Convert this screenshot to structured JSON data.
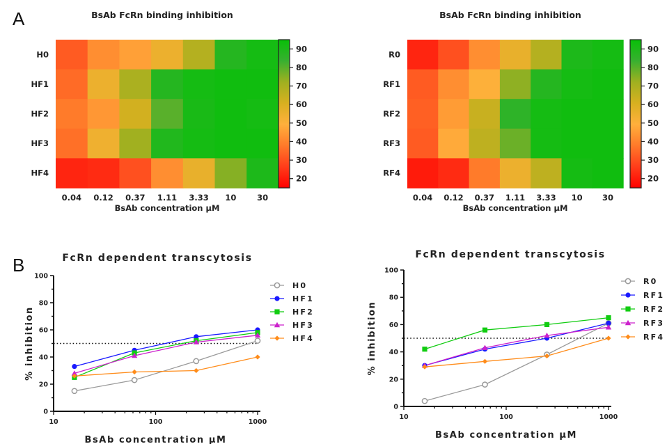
{
  "panel_labels": [
    "A",
    "B"
  ],
  "chart_data": [
    {
      "type": "heatmap",
      "title": "BsAb FcRn binding inhibition",
      "xlabel": "BsAb concentration µM",
      "x_categories": [
        "0.04",
        "0.12",
        "0.37",
        "1.11",
        "3.33",
        "10",
        "30"
      ],
      "y_categories": [
        "H0",
        "HF1",
        "HF2",
        "HF3",
        "HF4"
      ],
      "values": [
        [
          32,
          42,
          46,
          55,
          68,
          88,
          92
        ],
        [
          35,
          55,
          70,
          88,
          92,
          93,
          93
        ],
        [
          38,
          44,
          62,
          80,
          91,
          93,
          92
        ],
        [
          36,
          54,
          72,
          89,
          92,
          93,
          93
        ],
        [
          22,
          23,
          30,
          42,
          56,
          75,
          90
        ]
      ],
      "colorbar": {
        "ticks": [
          20,
          30,
          40,
          50,
          60,
          70,
          80,
          90
        ],
        "range": [
          15,
          95
        ],
        "colors": [
          "#ff0000",
          "#ff3d1a",
          "#ff7a2a",
          "#ffb03c",
          "#d8b020",
          "#a0b020",
          "#38b030",
          "#08c008"
        ]
      }
    },
    {
      "type": "heatmap",
      "title": "BsAb FcRn binding inhibition",
      "xlabel": "BsAb concentration µM",
      "x_categories": [
        "0.04",
        "0.12",
        "0.37",
        "1.11",
        "3.33",
        "10",
        "30"
      ],
      "y_categories": [
        "R0",
        "RF1",
        "RF2",
        "RF3",
        "RF4"
      ],
      "values": [
        [
          22,
          30,
          42,
          56,
          68,
          90,
          92
        ],
        [
          32,
          42,
          50,
          74,
          88,
          92,
          93
        ],
        [
          33,
          45,
          64,
          86,
          92,
          93,
          93
        ],
        [
          32,
          48,
          66,
          78,
          92,
          93,
          93
        ],
        [
          20,
          23,
          38,
          55,
          66,
          92,
          93
        ]
      ],
      "colorbar": {
        "ticks": [
          20,
          30,
          40,
          50,
          60,
          70,
          80,
          90
        ],
        "range": [
          15,
          95
        ],
        "colors": [
          "#ff0000",
          "#ff3d1a",
          "#ff7a2a",
          "#ffb03c",
          "#d8b020",
          "#a0b020",
          "#38b030",
          "#08c008"
        ]
      }
    },
    {
      "type": "line",
      "title": "FcRn dependent transcytosis",
      "xlabel": "BsAb concentration µM",
      "ylabel": "% inhibition",
      "xscale": "log",
      "xlim": [
        10,
        1000
      ],
      "ylim": [
        0,
        100
      ],
      "x_ticks": [
        "10",
        "100",
        "1000"
      ],
      "y_ticks": [
        "0",
        "20",
        "40",
        "60",
        "80",
        "100"
      ],
      "x": [
        16,
        62,
        250,
        1000
      ],
      "reference_line": 50,
      "series": [
        {
          "name": "H0",
          "values": [
            15,
            23,
            37,
            52
          ],
          "color": "#9a9a9a",
          "marker": "circle-open"
        },
        {
          "name": "HF1",
          "values": [
            33,
            45,
            55,
            60
          ],
          "color": "#1a1aff",
          "marker": "circle"
        },
        {
          "name": "HF2",
          "values": [
            25,
            43,
            52,
            58
          ],
          "color": "#11cc11",
          "marker": "square"
        },
        {
          "name": "HF3",
          "values": [
            28,
            41,
            51,
            56
          ],
          "color": "#cc22cc",
          "marker": "triangle"
        },
        {
          "name": "HF4",
          "values": [
            26,
            29,
            30,
            40
          ],
          "color": "#ff8c1a",
          "marker": "diamond"
        }
      ]
    },
    {
      "type": "line",
      "title": "FcRn dependent transcytosis",
      "xlabel": "BsAb concentration µM",
      "ylabel": "% inhibition",
      "xscale": "log",
      "xlim": [
        10,
        1000
      ],
      "ylim": [
        0,
        100
      ],
      "x_ticks": [
        "10",
        "100",
        "1000"
      ],
      "y_ticks": [
        "0",
        "20",
        "40",
        "60",
        "80",
        "100"
      ],
      "x": [
        16,
        62,
        250,
        1000
      ],
      "reference_line": 50,
      "series": [
        {
          "name": "R0",
          "values": [
            4,
            16,
            38,
            61
          ],
          "color": "#9a9a9a",
          "marker": "circle-open"
        },
        {
          "name": "RF1",
          "values": [
            30,
            42,
            50,
            61
          ],
          "color": "#1a1aff",
          "marker": "circle"
        },
        {
          "name": "RF2",
          "values": [
            42,
            56,
            60,
            65
          ],
          "color": "#11cc11",
          "marker": "square"
        },
        {
          "name": "RF3",
          "values": [
            30,
            43,
            52,
            58
          ],
          "color": "#cc22cc",
          "marker": "triangle"
        },
        {
          "name": "RF4",
          "values": [
            29,
            33,
            37,
            50
          ],
          "color": "#ff8c1a",
          "marker": "diamond"
        }
      ]
    }
  ]
}
